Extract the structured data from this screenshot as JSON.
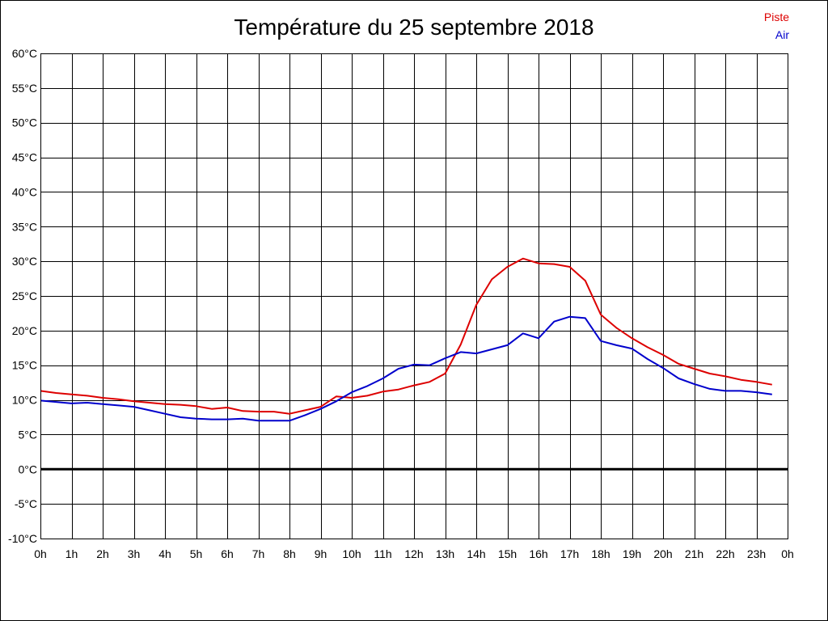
{
  "chart_data": {
    "type": "line",
    "title": "Température du 25 septembre 2018",
    "xlabel": "",
    "ylabel": "",
    "x": [
      "00:00",
      "00:30",
      "01:00",
      "01:30",
      "02:00",
      "02:30",
      "03:00",
      "03:30",
      "04:00",
      "04:30",
      "05:00",
      "05:30",
      "06:00",
      "06:30",
      "07:00",
      "07:30",
      "08:00",
      "08:30",
      "09:00",
      "09:30",
      "10:00",
      "10:30",
      "11:00",
      "11:30",
      "12:00",
      "12:30",
      "13:00",
      "13:30",
      "14:00",
      "14:30",
      "15:00",
      "15:30",
      "16:00",
      "16:30",
      "17:00",
      "17:30",
      "18:00",
      "18:30",
      "19:00",
      "19:30",
      "20:00",
      "20:30",
      "21:00",
      "21:30",
      "22:00",
      "22:30",
      "23:00",
      "23:30"
    ],
    "series": [
      {
        "name": "Piste",
        "color": "#dd0000",
        "values": [
          11.3,
          11.0,
          10.8,
          10.6,
          10.3,
          10.1,
          9.8,
          9.6,
          9.4,
          9.3,
          9.1,
          8.7,
          8.9,
          8.4,
          8.3,
          8.3,
          8.0,
          8.5,
          9.0,
          10.5,
          10.3,
          10.6,
          11.2,
          11.5,
          12.1,
          12.6,
          13.8,
          18.0,
          23.7,
          27.4,
          29.2,
          30.4,
          29.7,
          29.6,
          29.2,
          27.2,
          22.3,
          20.4,
          18.9,
          17.6,
          16.5,
          15.2,
          14.5,
          13.8,
          13.4,
          12.9,
          12.6,
          12.2
        ]
      },
      {
        "name": "Air",
        "color": "#0000cc",
        "values": [
          9.9,
          9.7,
          9.5,
          9.6,
          9.4,
          9.2,
          9.0,
          8.5,
          8.0,
          7.5,
          7.3,
          7.2,
          7.2,
          7.3,
          7.0,
          7.0,
          7.0,
          7.8,
          8.7,
          9.8,
          11.1,
          12.0,
          13.1,
          14.5,
          15.1,
          15.0,
          16.0,
          16.9,
          16.7,
          17.3,
          17.9,
          19.6,
          18.9,
          21.3,
          22.0,
          21.8,
          18.5,
          17.9,
          17.4,
          15.9,
          14.6,
          13.1,
          12.3,
          11.6,
          11.3,
          11.3,
          11.1,
          10.8
        ]
      }
    ],
    "ylim": [
      -10,
      60
    ],
    "yticks": [
      60,
      55,
      50,
      45,
      40,
      35,
      30,
      25,
      20,
      15,
      10,
      5,
      0,
      -5,
      -10
    ],
    "ytick_labels": [
      "60°C",
      "55°C",
      "50°C",
      "45°C",
      "40°C",
      "35°C",
      "30°C",
      "25°C",
      "20°C",
      "15°C",
      "10°C",
      "5°C",
      "0°C",
      "-5°C",
      "-10°C"
    ],
    "xtick_labels": [
      "0h",
      "1h",
      "2h",
      "3h",
      "4h",
      "5h",
      "6h",
      "7h",
      "8h",
      "9h",
      "10h",
      "11h",
      "12h",
      "13h",
      "14h",
      "15h",
      "16h",
      "17h",
      "18h",
      "19h",
      "20h",
      "21h",
      "22h",
      "23h",
      "0h"
    ],
    "grid": true,
    "zero_line": true,
    "legend_position": "top-right",
    "colors": {
      "grid": "#000000",
      "background": "#ffffff"
    }
  },
  "legend": {
    "piste": "Piste",
    "air": "Air"
  }
}
